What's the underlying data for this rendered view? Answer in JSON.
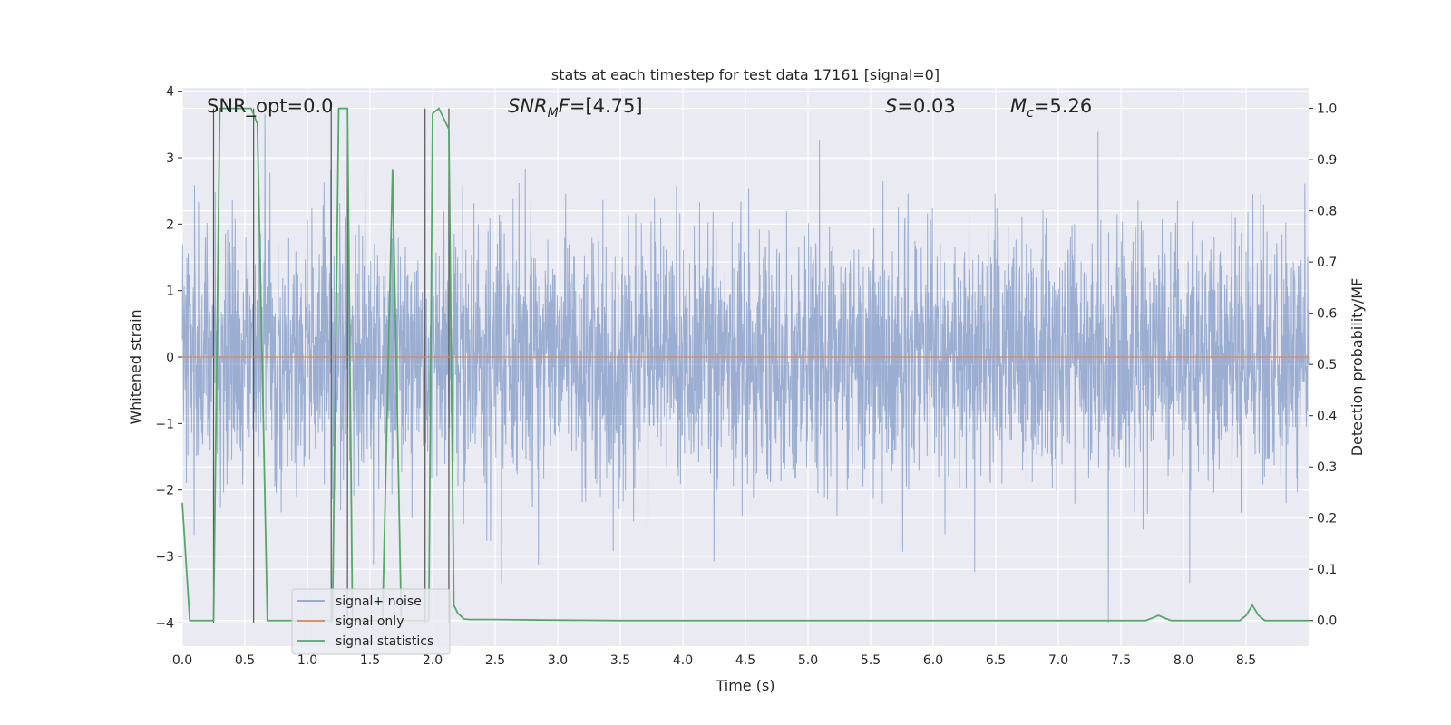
{
  "chart_data": {
    "type": "line",
    "title": "stats at each timestep for test data 17161 [signal=0]",
    "xlabel": "Time (s)",
    "ylabel": "Whitened strain",
    "ylabel_right": "Detection probability/MF",
    "xlim": [
      0.0,
      9.0
    ],
    "ylim": [
      -4.35,
      4.05
    ],
    "ylim_right": [
      -0.05,
      1.04
    ],
    "xticks": [
      "0.0",
      "0.5",
      "1.0",
      "1.5",
      "2.0",
      "2.5",
      "3.0",
      "3.5",
      "4.0",
      "4.5",
      "5.0",
      "5.5",
      "6.0",
      "6.5",
      "7.0",
      "7.5",
      "8.0",
      "8.5"
    ],
    "yticks": [
      "4",
      "3",
      "2",
      "1",
      "0",
      "−1",
      "−2",
      "−3",
      "−4"
    ],
    "yticks_right": [
      "1.0",
      "0.9",
      "0.8",
      "0.7",
      "0.6",
      "0.5",
      "0.4",
      "0.3",
      "0.2",
      "0.1",
      "0.0"
    ],
    "annotations": {
      "snr_opt": "SNR_opt=0.0",
      "snr_mf_sym": "SNR",
      "snr_mf_sub": "M",
      "snr_mf_f": "F",
      "snr_mf_val": "=[4.75]",
      "s_sym": "S",
      "s_val": "=0.03",
      "mc_sym": "M",
      "mc_sub": "c",
      "mc_val": "=5.26"
    },
    "legend": {
      "placement": "lower-left",
      "entries": [
        "signal+ noise",
        "signal only",
        "signal statistics"
      ]
    },
    "series": [
      {
        "name": "signal+ noise",
        "color": "#4c72b0",
        "style": "dense gaussian noise, std≈0.95, extremes: max 3.66 at t≈0.66, min -4.0 at t≈7.4"
      },
      {
        "name": "signal only",
        "color": "#dd8452",
        "values_constant": 0.0
      },
      {
        "name": "signal statistics",
        "color": "#55a868",
        "x": [
          0.0,
          0.06,
          0.25,
          0.3,
          0.55,
          0.6,
          0.68,
          0.7,
          1.2,
          1.25,
          1.32,
          1.36,
          1.6,
          1.68,
          1.75,
          1.97,
          2.0,
          2.05,
          2.13,
          2.17,
          2.2,
          2.25,
          2.3,
          2.5,
          2.9,
          3.5,
          7.7,
          7.75,
          7.8,
          7.85,
          7.9,
          8.45,
          8.5,
          8.55,
          8.6,
          8.65,
          9.0
        ],
        "values": [
          0.23,
          0.0,
          0.0,
          1.0,
          1.0,
          0.97,
          0.0,
          0.0,
          0.0,
          1.0,
          1.0,
          0.0,
          0.0,
          0.88,
          0.0,
          0.0,
          0.99,
          1.0,
          0.96,
          0.03,
          0.015,
          0.003,
          0.002,
          0.002,
          0.001,
          0.0,
          0.0,
          0.005,
          0.01,
          0.005,
          0.0,
          0.0,
          0.01,
          0.03,
          0.01,
          0.0,
          0.0
        ]
      }
    ],
    "vertical_markers_x": [
      0.25,
      0.57,
      1.19,
      1.32,
      1.94,
      2.13
    ]
  }
}
